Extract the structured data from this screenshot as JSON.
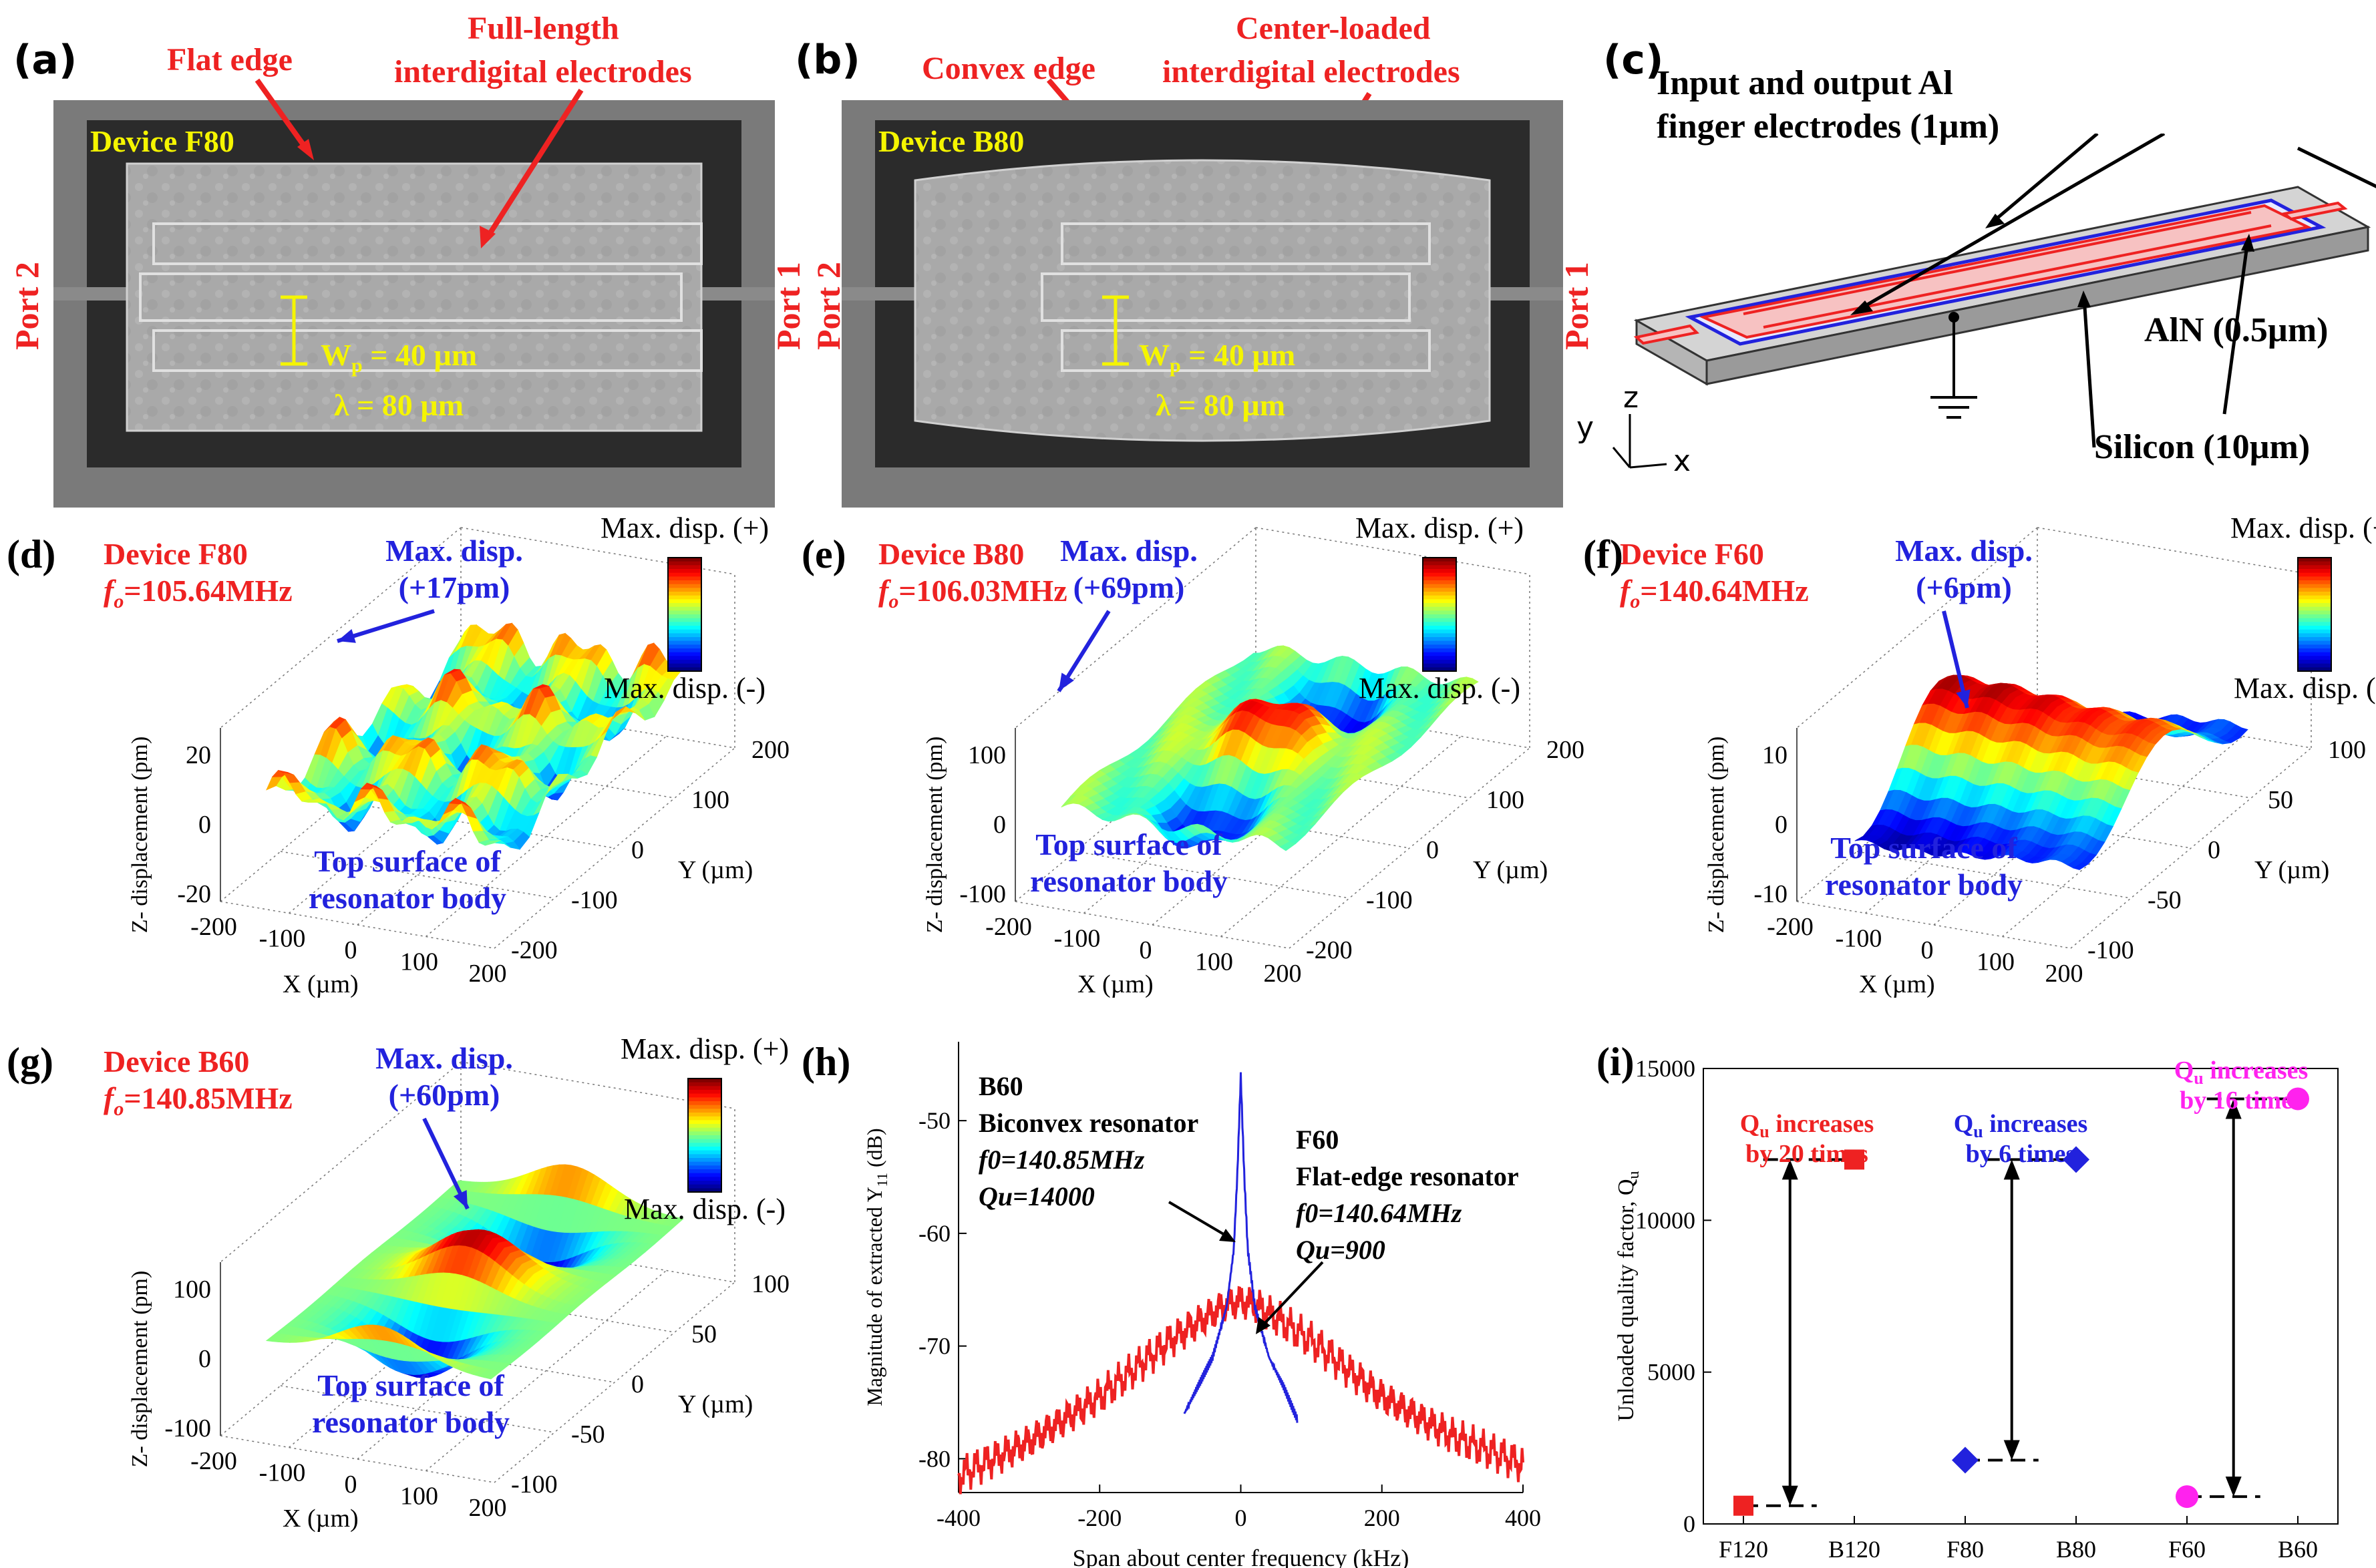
{
  "panel_a": {
    "label": "(a)",
    "annot_edge": "Flat edge",
    "annot_elec_line1": "Full-length",
    "annot_elec_line2": "interdigital electrodes",
    "device": "Device F80",
    "port_left": "Port 2",
    "port_right": "Port 1",
    "wp": "W",
    "wp_sub": "p",
    "wp_rest": " = 40 µm",
    "lambda": "λ = 80 µm"
  },
  "panel_b": {
    "label": "(b)",
    "annot_edge": "Convex edge",
    "annot_elec_line1": "Center-loaded",
    "annot_elec_line2": "interdigital electrodes",
    "device": "Device B80",
    "port_left": "Port 2",
    "port_right": "Port 1",
    "wp": "W",
    "wp_sub": "p",
    "wp_rest": " = 40 µm",
    "lambda": "λ = 80 µm"
  },
  "panel_c": {
    "label": "(c)",
    "title_line1": "Input and output Al",
    "title_line2": "finger electrodes (1µm)",
    "aln": "AlN (0.5µm)",
    "silicon": "Silicon (10µm)",
    "axis_y": "y",
    "axis_z": "z",
    "axis_x": "x"
  },
  "panel_d": {
    "label": "(d)",
    "device": "Device F80",
    "f_sym": "f",
    "f_sub": "o",
    "f_val": "=105.64MHz",
    "max_disp_line1": "Max. disp.",
    "max_disp_line2": "(+17pm)",
    "cb_plus": "Max. disp. (+)",
    "cb_minus": "Max. disp. (-)",
    "surface_line1": "Top surface of",
    "surface_line2": "resonator body",
    "zlabel": "Z- displacement (pm)",
    "xlabel": "X (µm)",
    "ylabel": "Y (µm)",
    "z_ticks": [
      "20",
      "0",
      "-20"
    ],
    "x_ticks": [
      "-200",
      "-100",
      "0",
      "100",
      "200"
    ],
    "y_ticks": [
      "-200",
      "-100",
      "0",
      "100",
      "200"
    ]
  },
  "panel_e": {
    "label": "(e)",
    "device": "Device B80",
    "f_sym": "f",
    "f_sub": "o",
    "f_val": "=106.03MHz",
    "max_disp_line1": "Max. disp.",
    "max_disp_line2": "(+69pm)",
    "cb_plus": "Max. disp. (+)",
    "cb_minus": "Max. disp. (-)",
    "surface_line1": "Top surface of",
    "surface_line2": "resonator body",
    "zlabel": "Z- displacement (pm)",
    "xlabel": "X (µm)",
    "ylabel": "Y (µm)",
    "z_ticks": [
      "100",
      "0",
      "-100"
    ],
    "x_ticks": [
      "-200",
      "-100",
      "0",
      "100",
      "200"
    ],
    "y_ticks": [
      "-200",
      "-100",
      "0",
      "100",
      "200"
    ]
  },
  "panel_f": {
    "label": "(f)",
    "device": "Device F60",
    "f_sym": "f",
    "f_sub": "o",
    "f_val": "=140.64MHz",
    "max_disp_line1": "Max. disp.",
    "max_disp_line2": "(+6pm)",
    "cb_plus": "Max. disp. (+)",
    "cb_minus": "Max. disp. (-)",
    "surface_line1": "Top surface of",
    "surface_line2": "resonator body",
    "zlabel": "Z- displacement (pm)",
    "xlabel": "X (µm)",
    "ylabel": "Y (µm)",
    "z_ticks": [
      "10",
      "0",
      "-10"
    ],
    "x_ticks": [
      "-200",
      "-100",
      "0",
      "100",
      "200"
    ],
    "y_ticks": [
      "-100",
      "-50",
      "0",
      "50",
      "100"
    ]
  },
  "panel_g": {
    "label": "(g)",
    "device": "Device B60",
    "f_sym": "f",
    "f_sub": "o",
    "f_val": "=140.85MHz",
    "max_disp_line1": "Max. disp.",
    "max_disp_line2": "(+60pm)",
    "cb_plus": "Max. disp. (+)",
    "cb_minus": "Max. disp. (-)",
    "surface_line1": "Top surface of",
    "surface_line2": "resonator body",
    "zlabel": "Z- displacement (pm)",
    "xlabel": "X (µm)",
    "ylabel": "Y (µm)",
    "z_ticks": [
      "100",
      "0",
      "-100"
    ],
    "x_ticks": [
      "-200",
      "-100",
      "0",
      "100",
      "200"
    ],
    "y_ticks": [
      "-100",
      "-50",
      "0",
      "50",
      "100"
    ]
  },
  "panel_h": {
    "label": "(h)",
    "b60_title": "B60",
    "b60_name": "Biconvex resonator",
    "b60_f": "f0=140.85MHz",
    "b60_q": "Qu=14000",
    "f60_title": "F60",
    "f60_name": "Flat-edge resonator",
    "f60_f": "f0=140.64MHz",
    "f60_q": "Qu=900"
  },
  "panel_i": {
    "label": "(i)",
    "ann_1_line1": "Q",
    "ann_1_sub": "u",
    "ann_1_rest": " increases",
    "ann_1_line2": "by 20 times",
    "ann_2_line1": "Q",
    "ann_2_sub": "u",
    "ann_2_rest": " increases",
    "ann_2_line2": "by 6 times",
    "ann_3_line1": "Q",
    "ann_3_sub": "u",
    "ann_3_rest": " increases",
    "ann_3_line2": "by 16 times",
    "colors": {
      "red": "#ee2222",
      "blue": "#2222dd",
      "magenta": "#ff22ee"
    }
  },
  "chart_data": [
    {
      "type": "line",
      "panel": "h",
      "title": "",
      "xlabel": "Span about center frequency (kHz)",
      "ylabel": "Magnitude of extracted Y11 (dB)",
      "ylabel_main": "Magnitude of extracted Y",
      "ylabel_sub": "11",
      "ylabel_unit": " (dB)",
      "xlim": [
        -400,
        400
      ],
      "ylim": [
        -83,
        -43
      ],
      "x_ticks": [
        -400,
        -200,
        0,
        200,
        400
      ],
      "y_ticks": [
        -80,
        -70,
        -60,
        -50
      ],
      "series": [
        {
          "name": "F60 Flat-edge resonator",
          "color": "#ee2222",
          "x": [
            -400,
            -300,
            -200,
            -150,
            -100,
            -50,
            -20,
            0,
            20,
            50,
            100,
            150,
            200,
            300,
            400
          ],
          "values": [
            -81.5,
            -78.5,
            -74.5,
            -72.0,
            -69.5,
            -67.5,
            -66.3,
            -66.0,
            -66.3,
            -67.5,
            -69.5,
            -72.0,
            -74.5,
            -78.0,
            -80.5
          ]
        },
        {
          "name": "B60 Biconvex resonator",
          "color": "#2222dd",
          "x": [
            -80,
            -60,
            -40,
            -20,
            -10,
            -5,
            0,
            5,
            10,
            20,
            40,
            60,
            80
          ],
          "values": [
            -76.0,
            -73.5,
            -71.0,
            -66.5,
            -61.5,
            -55.0,
            -46.0,
            -55.0,
            -61.5,
            -66.5,
            -71.0,
            -73.5,
            -76.5
          ]
        }
      ]
    },
    {
      "type": "scatter",
      "panel": "i",
      "title": "",
      "xlabel": "",
      "ylabel": "Unloaded quality factor, Qu",
      "ylabel_main": "Unloaded quality factor, Q",
      "ylabel_sub": "u",
      "ylim": [
        0,
        15000
      ],
      "y_ticks": [
        0,
        5000,
        10000,
        15000
      ],
      "categories": [
        "F120",
        "B120",
        "F80",
        "B80",
        "F60",
        "B60"
      ],
      "series": [
        {
          "name": "F120/B120",
          "color": "#ee2222",
          "marker": "square",
          "categories": [
            "F120",
            "B120"
          ],
          "values": [
            600,
            12000
          ]
        },
        {
          "name": "F80/B80",
          "color": "#2222dd",
          "marker": "diamond",
          "categories": [
            "F80",
            "B80"
          ],
          "values": [
            2100,
            12000
          ]
        },
        {
          "name": "F60/B60",
          "color": "#ff22ee",
          "marker": "circle",
          "categories": [
            "F60",
            "B60"
          ],
          "values": [
            900,
            14000
          ]
        }
      ]
    }
  ]
}
